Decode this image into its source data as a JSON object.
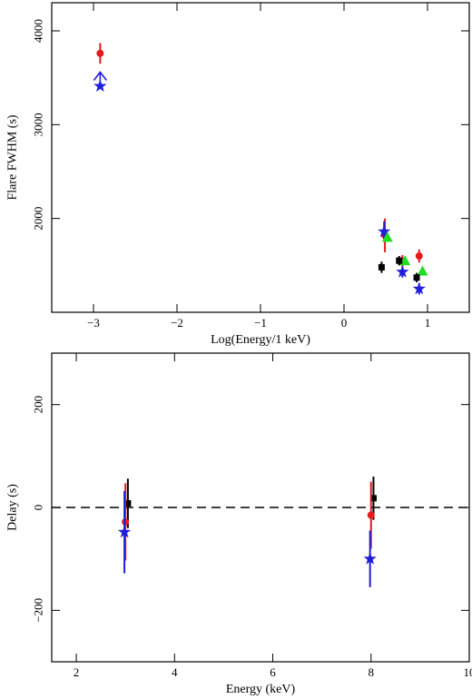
{
  "chart_data": [
    {
      "type": "scatter",
      "title": "",
      "xlabel": "Log(Energy/1 keV)",
      "ylabel": "Flare FWHM (s)",
      "xlim": [
        -3.5,
        1.5
      ],
      "ylim": [
        1000,
        4300
      ],
      "xticks": [
        -3,
        -2,
        -1,
        0,
        1
      ],
      "xticklabels": [
        "−3",
        "−2",
        "−1",
        "0",
        "1"
      ],
      "yticks": [
        2000,
        3000,
        4000
      ],
      "yticklabels": [
        "2000",
        "3000",
        "4000"
      ],
      "grid": false,
      "legend": "none",
      "series": [
        {
          "marker": "circle",
          "color": "#e41a1c",
          "points": [
            {
              "x": -2.92,
              "y": 3760,
              "err": 110
            },
            {
              "x": 0.49,
              "y": 1820,
              "err": 180
            },
            {
              "x": 0.7,
              "y": 1540,
              "err": 70
            },
            {
              "x": 0.9,
              "y": 1600,
              "err": 70
            }
          ]
        },
        {
          "marker": "star",
          "color": "#1f1fd8",
          "points": [
            {
              "x": -2.92,
              "y": 3410,
              "err": 0
            },
            {
              "x": 0.48,
              "y": 1860,
              "err": 110
            },
            {
              "x": 0.7,
              "y": 1430,
              "err": 60
            },
            {
              "x": 0.9,
              "y": 1250,
              "err": 60
            }
          ]
        },
        {
          "marker": "arrow-up",
          "color": "#1f1fd8",
          "points": [
            {
              "x": -2.92,
              "y": 3440,
              "to": 3560
            }
          ]
        },
        {
          "marker": "triangle",
          "color": "#22dd22",
          "points": [
            {
              "x": 0.52,
              "y": 1800,
              "err": 50
            },
            {
              "x": 0.73,
              "y": 1550,
              "err": 40
            },
            {
              "x": 0.94,
              "y": 1440,
              "err": 40
            }
          ]
        },
        {
          "marker": "square",
          "color": "#000000",
          "points": [
            {
              "x": 0.45,
              "y": 1480,
              "err": 60
            },
            {
              "x": 0.66,
              "y": 1550,
              "err": 50
            },
            {
              "x": 0.87,
              "y": 1370,
              "err": 50
            }
          ]
        }
      ]
    },
    {
      "type": "scatter",
      "title": "",
      "xlabel": "Energy (keV)",
      "ylabel": "Delay (s)",
      "xlim": [
        1.5,
        10
      ],
      "ylim": [
        -300,
        300
      ],
      "xticks": [
        2,
        4,
        6,
        8,
        10
      ],
      "xticklabels": [
        "2",
        "4",
        "6",
        "8",
        "10"
      ],
      "yticks": [
        -200,
        0,
        200
      ],
      "yticklabels": [
        "−200",
        "0",
        "200"
      ],
      "hline": 0,
      "grid": false,
      "legend": "none",
      "series": [
        {
          "marker": "square",
          "color": "#000000",
          "points": [
            {
              "x": 3.05,
              "y": 8,
              "err": 48
            },
            {
              "x": 8.05,
              "y": 18,
              "err": 42
            }
          ]
        },
        {
          "marker": "circle",
          "color": "#e41a1c",
          "points": [
            {
              "x": 3.0,
              "y": -28,
              "err": 75
            },
            {
              "x": 8.0,
              "y": -15,
              "err": 65
            }
          ]
        },
        {
          "marker": "star",
          "color": "#1f1fd8",
          "points": [
            {
              "x": 2.98,
              "y": -48,
              "err": 80
            },
            {
              "x": 7.98,
              "y": -100,
              "err": 55
            }
          ]
        }
      ]
    }
  ]
}
